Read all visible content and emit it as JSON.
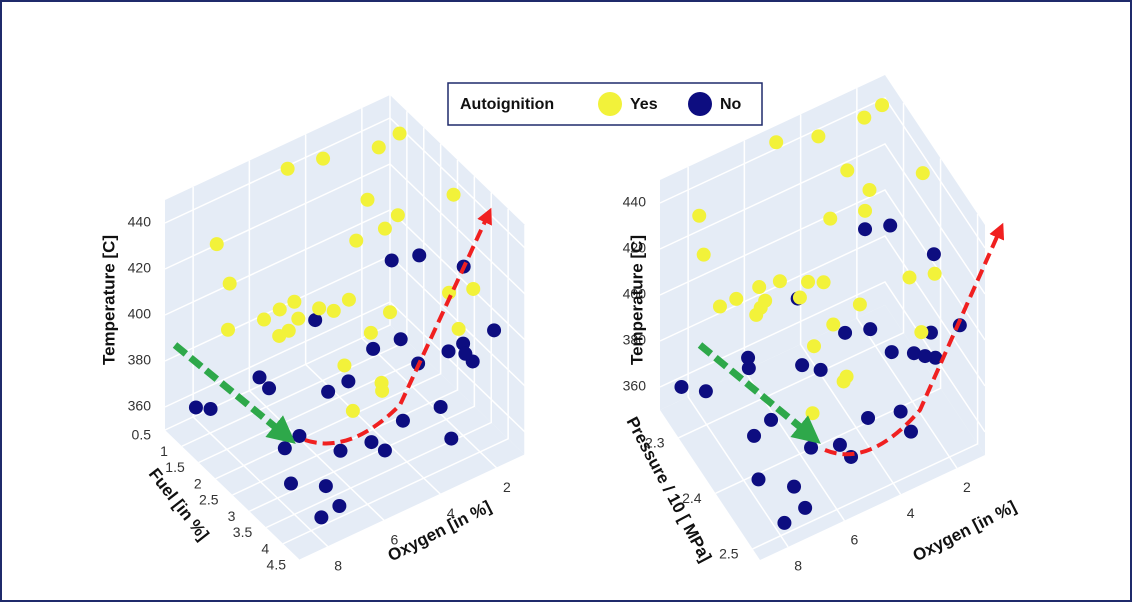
{
  "chart_data": [
    {
      "type": "scatter3d",
      "legend_title": "Autoignition",
      "x_label": "Oxygen [in %]",
      "y_label": "Fuel [in %]",
      "z_label": "Temperature [C]",
      "xlim": [
        1,
        9
      ],
      "ylim": [
        0.5,
        4.5
      ],
      "zlim": [
        350,
        450
      ],
      "xticks": [
        2,
        4,
        6,
        8
      ],
      "yticks": [
        0.5,
        1,
        1.5,
        2,
        2.5,
        3,
        3.5,
        4,
        4.5
      ],
      "zticks": [
        360,
        380,
        400,
        420,
        440
      ],
      "series": [
        {
          "name": "Yes",
          "color": "#f2f23a",
          "x": [
            2,
            3,
            4,
            5,
            6,
            7,
            8,
            2.5,
            3.5,
            4.5,
            5.5,
            6.5,
            7.5,
            1.5,
            3,
            5,
            7,
            8.5,
            2,
            4,
            6,
            8,
            3,
            5,
            7,
            1.5,
            4,
            6,
            2.5,
            5.5
          ],
          "y": [
            1,
            1.5,
            2,
            0.8,
            3,
            2.5,
            1.2,
            3.5,
            0.6,
            2.2,
            4,
            1.8,
            3.2,
            2.8,
            4.2,
            1,
            0.7,
            2,
            3.8,
            3,
            1.4,
            2.6,
            2.4,
            3.6,
            4.4,
            1.2,
            0.9,
            4.1,
            1.6,
            2.9
          ],
          "z": [
            440,
            430,
            425,
            445,
            420,
            410,
            435,
            415,
            438,
            405,
            400,
            395,
            428,
            442,
            412,
            390,
            385,
            432,
            418,
            408,
            398,
            422,
            436,
            388,
            402,
            446,
            380,
            426,
            416,
            392
          ]
        },
        {
          "name": "No",
          "color": "#0d0d80",
          "x": [
            1.5,
            2,
            2.5,
            3,
            3.5,
            4,
            4.5,
            5,
            5.5,
            6,
            6.5,
            7,
            7.5,
            8,
            8.5,
            2,
            3,
            4,
            5,
            6,
            7,
            8,
            2.5,
            3.5,
            4.5,
            5.5,
            6.5,
            7.5,
            1.5,
            3
          ],
          "y": [
            4,
            3.5,
            4.2,
            3,
            4.4,
            2.5,
            3.8,
            2,
            4.1,
            3.2,
            1.5,
            3.6,
            2.8,
            4.3,
            1,
            2.2,
            3.9,
            4.5,
            2.6,
            0.8,
            4,
            3.4,
            1.8,
            2.9,
            1.2,
            3.7,
            2.4,
            0.6,
            3.1,
            4.4
          ],
          "z": [
            400,
            390,
            395,
            380,
            370,
            385,
            375,
            365,
            372,
            362,
            368,
            358,
            366,
            360,
            364,
            410,
            398,
            388,
            378,
            360,
            355,
            362,
            405,
            392,
            382,
            370,
            360,
            352,
            415,
            404
          ]
        }
      ]
    },
    {
      "type": "scatter3d",
      "x_label": "Oxygen [in %]",
      "y_label": "Pressure / 10 [ MPa]",
      "z_label": "Temperature [C]",
      "xlim": [
        1,
        9
      ],
      "ylim": [
        2.25,
        2.52
      ],
      "zlim": [
        350,
        450
      ],
      "xticks": [
        2,
        4,
        6,
        8
      ],
      "yticks": [
        2.3,
        2.4,
        2.5
      ],
      "zticks": [
        360,
        380,
        400,
        420,
        440
      ],
      "series": [
        {
          "name": "Yes",
          "color": "#f2f23a",
          "x": [
            2,
            3,
            4,
            5,
            6,
            7,
            8,
            2.5,
            3.5,
            4.5,
            5.5,
            6.5,
            7.5,
            1.5,
            3,
            5,
            7,
            8.5,
            2,
            4,
            6,
            8,
            3,
            5,
            7,
            1.5,
            4,
            6,
            2.5,
            5.5
          ],
          "y": [
            2.27,
            2.3,
            2.33,
            2.26,
            2.4,
            2.37,
            2.28,
            2.43,
            2.26,
            2.35,
            2.48,
            2.32,
            2.42,
            2.39,
            2.5,
            2.27,
            2.26,
            2.33,
            2.46,
            2.41,
            2.29,
            2.38,
            2.36,
            2.45,
            2.51,
            2.28,
            2.27,
            2.49,
            2.31,
            2.4
          ],
          "z": [
            442,
            432,
            424,
            446,
            418,
            412,
            436,
            414,
            440,
            404,
            398,
            394,
            430,
            444,
            410,
            388,
            386,
            434,
            420,
            406,
            396,
            424,
            438,
            390,
            400,
            447,
            382,
            428,
            414,
            394
          ]
        },
        {
          "name": "No",
          "color": "#0d0d80",
          "x": [
            1.5,
            2,
            2.5,
            3,
            3.5,
            4,
            4.5,
            5,
            5.5,
            6,
            6.5,
            7,
            7.5,
            8,
            8.5,
            2,
            3,
            4,
            5,
            6,
            7,
            8,
            2.5,
            3.5,
            4.5,
            5.5,
            6.5,
            7.5,
            1.5,
            3
          ],
          "y": [
            2.49,
            2.45,
            2.5,
            2.42,
            2.51,
            2.37,
            2.47,
            2.33,
            2.5,
            2.43,
            2.3,
            2.46,
            2.39,
            2.51,
            2.27,
            2.34,
            2.48,
            2.52,
            2.38,
            2.26,
            2.49,
            2.44,
            2.31,
            2.4,
            2.28,
            2.47,
            2.36,
            2.26,
            2.42,
            2.51
          ],
          "z": [
            402,
            392,
            396,
            382,
            372,
            384,
            374,
            366,
            370,
            360,
            366,
            356,
            364,
            358,
            362,
            412,
            396,
            386,
            376,
            358,
            354,
            360,
            406,
            390,
            380,
            368,
            358,
            352,
            416,
            402
          ]
        }
      ]
    }
  ]
}
